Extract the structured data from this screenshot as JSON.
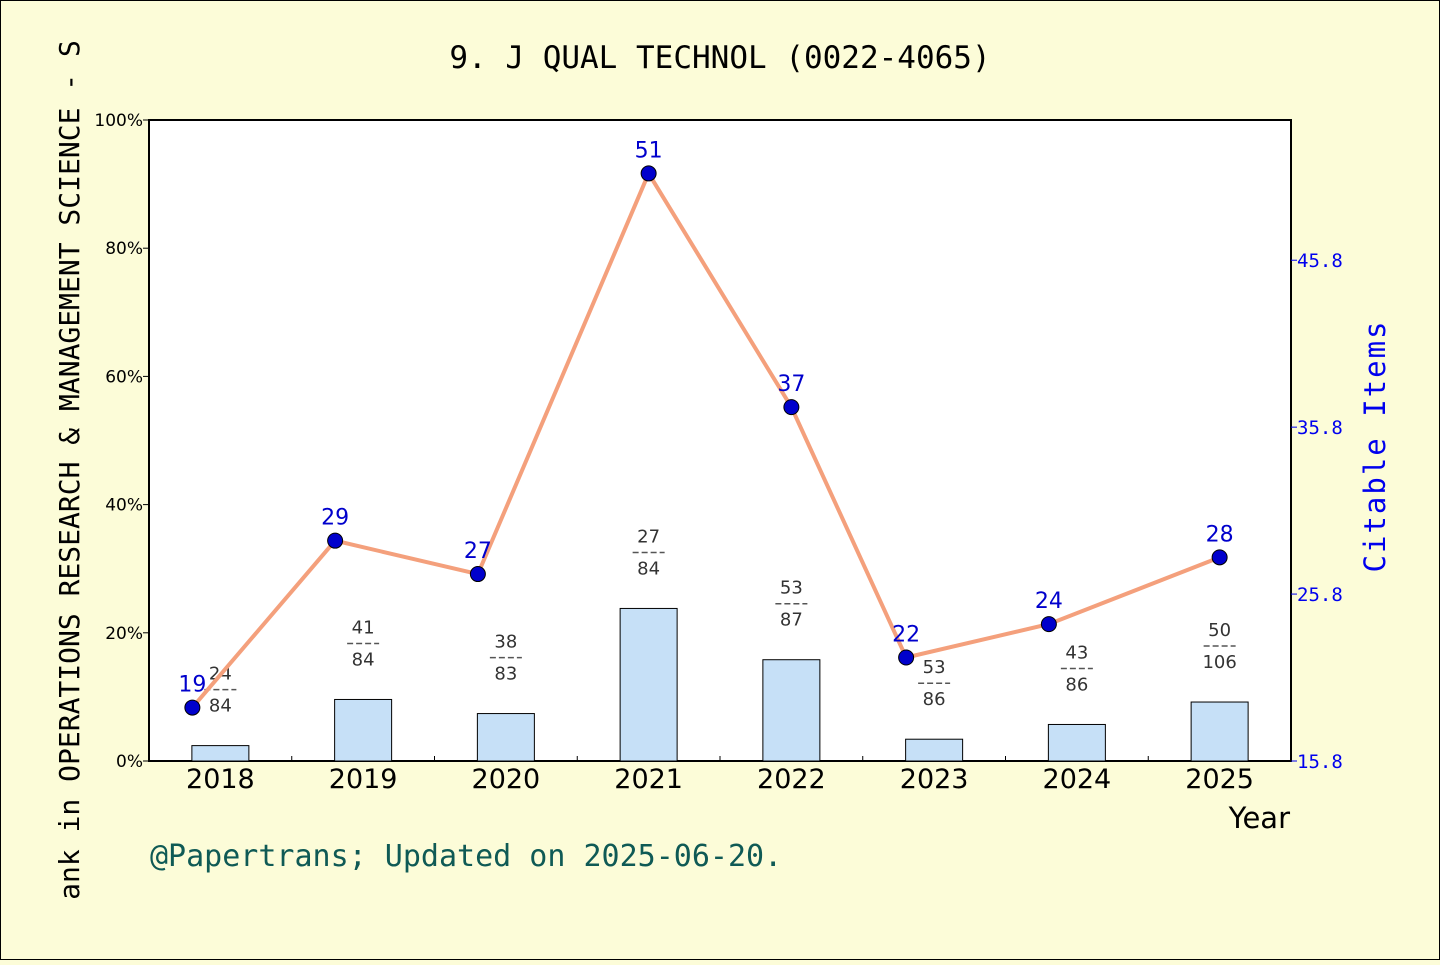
{
  "chart_data": {
    "type": "bar",
    "title": "9. J QUAL TECHNOL (0022-4065)",
    "ylabel": "ank in OPERATIONS RESEARCH & MANAGEMENT SCIENCE - S",
    "xlabel": "Year",
    "y2label": "Citable Items",
    "ylim": [
      0,
      100
    ],
    "y2lim": [
      15.8,
      54.2
    ],
    "yticks": [
      "0%",
      "20%",
      "40%",
      "60%",
      "80%",
      "100%"
    ],
    "y2ticks": [
      "15.8",
      "25.8",
      "35.8",
      "45.8"
    ],
    "categories": [
      "2018",
      "2019",
      "2020",
      "2021",
      "2022",
      "2023",
      "2024",
      "2025"
    ],
    "series": [
      {
        "type": "bar",
        "values": [
          2.4,
          9.6,
          7.4,
          23.8,
          15.8,
          3.4,
          5.7,
          9.2
        ],
        "rank_labels": [
          {
            "top": "24",
            "bottom": "84"
          },
          {
            "top": "41",
            "bottom": "84"
          },
          {
            "top": "38",
            "bottom": "83"
          },
          {
            "top": "27",
            "bottom": "84"
          },
          {
            "top": "53",
            "bottom": "87"
          },
          {
            "top": "53",
            "bottom": "86"
          },
          {
            "top": "43",
            "bottom": "86"
          },
          {
            "top": "50",
            "bottom": "106"
          }
        ],
        "color": "#c6e0f7"
      },
      {
        "type": "line",
        "axis": "right",
        "values": [
          19,
          29,
          27,
          51,
          37,
          22,
          24,
          28
        ],
        "line_color": "#f4a07c",
        "marker_color": "#0000cc",
        "label_color": "#0000cc"
      }
    ],
    "grid": false
  },
  "footer": {
    "credit": "@Papertrans; Updated on 2025-06-20."
  }
}
